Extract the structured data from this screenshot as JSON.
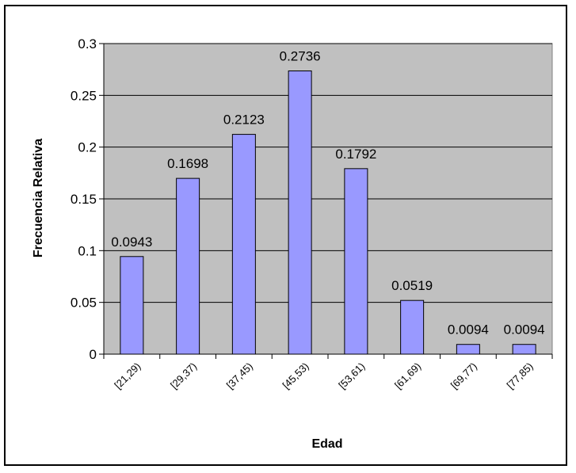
{
  "chart_data": {
    "type": "bar",
    "title": "",
    "xlabel": "Edad",
    "ylabel": "Frecuencia Relativa",
    "categories": [
      "[21,29)",
      "[29,37)",
      "[37,45)",
      "[45,53)",
      "[53,61)",
      "[61,69)",
      "[69,77)",
      "[77,85)"
    ],
    "values": [
      0.0943,
      0.1698,
      0.2123,
      0.2736,
      0.1792,
      0.0519,
      0.0094,
      0.0094
    ],
    "data_labels": [
      "0.0943",
      "0.1698",
      "0.2123",
      "0.2736",
      "0.1792",
      "0.0519",
      "0.0094",
      "0.0094"
    ],
    "ylim": [
      0,
      0.3
    ],
    "yticks": [
      0,
      0.05,
      0.1,
      0.15,
      0.2,
      0.25,
      0.3
    ],
    "ytick_labels": [
      "0",
      "0.05",
      "0.1",
      "0.15",
      "0.2",
      "0.25",
      "0.3"
    ],
    "grid": true,
    "legend": "none",
    "colors": {
      "bar_fill": "#9999ff",
      "plot_background": "#c0c0c0",
      "gridline": "#000000"
    }
  }
}
